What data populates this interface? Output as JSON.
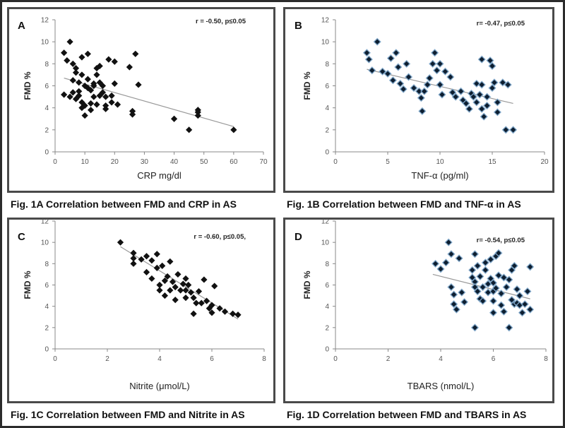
{
  "figure": {
    "captions": {
      "a": "Fig. 1A Correlation between FMD and CRP in AS",
      "b": "Fig. 1B Correlation between FMD and TNF-α in AS",
      "c": "Fig. 1C Correlation between FMD and Nitrite in AS",
      "d": "Fig. 1D Correlation between FMD and TBARS in AS"
    }
  },
  "chart_data": [
    {
      "type": "scatter",
      "panel_label": "A",
      "annotation": "r = -0.50, p≤0.05",
      "xlabel": "CRP mg/dl",
      "ylabel": "FMD %",
      "xlim": [
        0,
        70
      ],
      "ylim": [
        0,
        12
      ],
      "xticks": [
        "0",
        "10",
        "20",
        "30",
        "40",
        "50",
        "60",
        "70"
      ],
      "yticks": [
        "0",
        "2",
        "4",
        "6",
        "8",
        "10",
        "12"
      ],
      "marker_color": "#111111",
      "trendline": {
        "x": [
          3,
          60
        ],
        "y": [
          6.7,
          2.3
        ]
      },
      "points": [
        [
          3,
          9
        ],
        [
          3,
          5.2
        ],
        [
          4,
          8.3
        ],
        [
          5,
          10
        ],
        [
          5,
          5
        ],
        [
          6,
          8
        ],
        [
          6,
          6.5
        ],
        [
          6,
          5.4
        ],
        [
          7,
          7.6
        ],
        [
          7,
          7.2
        ],
        [
          7,
          4.8
        ],
        [
          8,
          6.3
        ],
        [
          8,
          5.5
        ],
        [
          8,
          5.1
        ],
        [
          9,
          8.6
        ],
        [
          9,
          7
        ],
        [
          9,
          4.5
        ],
        [
          9,
          4
        ],
        [
          10,
          3.3
        ],
        [
          10,
          6
        ],
        [
          10,
          4.2
        ],
        [
          11,
          8.9
        ],
        [
          11,
          6.6
        ],
        [
          11,
          5.8
        ],
        [
          12,
          5.6
        ],
        [
          12,
          3.8
        ],
        [
          12,
          4.4
        ],
        [
          13,
          5
        ],
        [
          13,
          6.2
        ],
        [
          13,
          6
        ],
        [
          14,
          7.6
        ],
        [
          14,
          7
        ],
        [
          14,
          4.3
        ],
        [
          15,
          7.8
        ],
        [
          15,
          6.3
        ],
        [
          15,
          5.1
        ],
        [
          16,
          5.4
        ],
        [
          16,
          6
        ],
        [
          17,
          4.2
        ],
        [
          17,
          5
        ],
        [
          17,
          3.9
        ],
        [
          18,
          8.4
        ],
        [
          19,
          5.1
        ],
        [
          19,
          4.5
        ],
        [
          20,
          8.2
        ],
        [
          20,
          6.2
        ],
        [
          21,
          4.3
        ],
        [
          25,
          7.7
        ],
        [
          26,
          3.4
        ],
        [
          26,
          3.7
        ],
        [
          27,
          8.9
        ],
        [
          28,
          6.1
        ],
        [
          40,
          3
        ],
        [
          45,
          2
        ],
        [
          48,
          3.3
        ],
        [
          48,
          3.6
        ],
        [
          48,
          3.8
        ],
        [
          60,
          2
        ]
      ]
    },
    {
      "type": "scatter",
      "panel_label": "B",
      "annotation": "r= -0.47, p≤0.05",
      "xlabel": "TNF-α (pg/ml)",
      "ylabel": "FMD %",
      "xlim": [
        0,
        20
      ],
      "ylim": [
        0,
        12
      ],
      "xticks": [
        "0",
        "5",
        "10",
        "15",
        "20"
      ],
      "yticks": [
        "0",
        "2",
        "4",
        "6",
        "8",
        "10",
        "12"
      ],
      "marker_color": "#0d1e30",
      "trendline": {
        "x": [
          3,
          17
        ],
        "y": [
          7.5,
          4.4
        ]
      },
      "points": [
        [
          3,
          9
        ],
        [
          3.2,
          8.4
        ],
        [
          3.5,
          7.4
        ],
        [
          4,
          10
        ],
        [
          4.5,
          7.3
        ],
        [
          5,
          7.1
        ],
        [
          5.3,
          8.5
        ],
        [
          5.5,
          6.5
        ],
        [
          5.8,
          9
        ],
        [
          6,
          7.7
        ],
        [
          6.2,
          6.2
        ],
        [
          6.5,
          5.7
        ],
        [
          6.8,
          8
        ],
        [
          7,
          6.8
        ],
        [
          7.5,
          5.8
        ],
        [
          8,
          5.5
        ],
        [
          8.2,
          4.9
        ],
        [
          8.3,
          3.7
        ],
        [
          8.5,
          5.5
        ],
        [
          8.8,
          6.1
        ],
        [
          9,
          6.7
        ],
        [
          9.3,
          8
        ],
        [
          9.5,
          9
        ],
        [
          9.7,
          7.4
        ],
        [
          10,
          8
        ],
        [
          10,
          6.1
        ],
        [
          10.2,
          5.2
        ],
        [
          10.5,
          7.3
        ],
        [
          11,
          6.8
        ],
        [
          11.2,
          5.4
        ],
        [
          11.5,
          5
        ],
        [
          12,
          5.5
        ],
        [
          12.2,
          4.7
        ],
        [
          12.5,
          4.4
        ],
        [
          12.8,
          3.9
        ],
        [
          13,
          5.3
        ],
        [
          13.2,
          5
        ],
        [
          13.5,
          6.2
        ],
        [
          13.5,
          4.5
        ],
        [
          13.8,
          5.2
        ],
        [
          14,
          8.4
        ],
        [
          14,
          6.1
        ],
        [
          14,
          3.9
        ],
        [
          14.2,
          3.2
        ],
        [
          14.5,
          5
        ],
        [
          14.5,
          4.2
        ],
        [
          14.8,
          8.3
        ],
        [
          15,
          7.8
        ],
        [
          15,
          5.8
        ],
        [
          15.2,
          6.3
        ],
        [
          15.5,
          4.5
        ],
        [
          15.5,
          3.6
        ],
        [
          16,
          6.3
        ],
        [
          16.3,
          2
        ],
        [
          16.5,
          6.1
        ],
        [
          17,
          2
        ]
      ]
    },
    {
      "type": "scatter",
      "panel_label": "C",
      "annotation": "r = -0.60, p≤0.05,",
      "xlabel": "Nitrite (μmol/L)",
      "ylabel": "FMD %",
      "xlim": [
        0,
        8
      ],
      "ylim": [
        0,
        12
      ],
      "xticks": [
        "0",
        "2",
        "4",
        "6",
        "8"
      ],
      "yticks": [
        "0",
        "2",
        "4",
        "6",
        "8",
        "10",
        "12"
      ],
      "marker_color": "#111111",
      "trendline": {
        "x": [
          2.5,
          7
        ],
        "y": [
          9.6,
          2.8
        ]
      },
      "points": [
        [
          2.5,
          10
        ],
        [
          3,
          9
        ],
        [
          3,
          8.5
        ],
        [
          3,
          8
        ],
        [
          3.3,
          8.4
        ],
        [
          3.5,
          8.7
        ],
        [
          3.5,
          7.2
        ],
        [
          3.7,
          8.3
        ],
        [
          3.7,
          6.6
        ],
        [
          3.9,
          8.9
        ],
        [
          3.9,
          7.6
        ],
        [
          4,
          6
        ],
        [
          4,
          5.5
        ],
        [
          4.1,
          7.8
        ],
        [
          4.2,
          6.4
        ],
        [
          4.2,
          5
        ],
        [
          4.3,
          6.8
        ],
        [
          4.4,
          8.2
        ],
        [
          4.4,
          5.5
        ],
        [
          4.5,
          6.3
        ],
        [
          4.6,
          5.8
        ],
        [
          4.6,
          4.6
        ],
        [
          4.7,
          7
        ],
        [
          4.8,
          5.5
        ],
        [
          4.9,
          6.1
        ],
        [
          5,
          6.6
        ],
        [
          5,
          5.5
        ],
        [
          5,
          4.8
        ],
        [
          5.1,
          6
        ],
        [
          5.2,
          5.3
        ],
        [
          5.3,
          4.8
        ],
        [
          5.3,
          3.3
        ],
        [
          5.4,
          4.3
        ],
        [
          5.5,
          5.4
        ],
        [
          5.6,
          4.3
        ],
        [
          5.7,
          6.5
        ],
        [
          5.8,
          4.5
        ],
        [
          5.9,
          3.8
        ],
        [
          6,
          4.1
        ],
        [
          6,
          3.4
        ],
        [
          6.1,
          5.9
        ],
        [
          6.3,
          3.8
        ],
        [
          6.5,
          3.5
        ],
        [
          6.8,
          3.3
        ],
        [
          7,
          3.2
        ]
      ]
    },
    {
      "type": "scatter",
      "panel_label": "D",
      "annotation": "r= -0.54, p≤0.05",
      "xlabel": "TBARS (nmol/L)",
      "ylabel": "FMD %",
      "xlim": [
        0,
        8
      ],
      "ylim": [
        0,
        12
      ],
      "xticks": [
        "0",
        "2",
        "4",
        "6",
        "8"
      ],
      "yticks": [
        "0",
        "2",
        "4",
        "6",
        "8",
        "10",
        "12"
      ],
      "marker_color": "#0d1e30",
      "trendline": {
        "x": [
          3.7,
          7.4
        ],
        "y": [
          7,
          4.7
        ]
      },
      "points": [
        [
          3.8,
          8
        ],
        [
          4,
          7.5
        ],
        [
          4.2,
          8.1
        ],
        [
          4.3,
          10
        ],
        [
          4.4,
          8.9
        ],
        [
          4.4,
          5.8
        ],
        [
          4.5,
          5.1
        ],
        [
          4.5,
          4.2
        ],
        [
          4.6,
          3.7
        ],
        [
          4.7,
          8.5
        ],
        [
          4.8,
          5.3
        ],
        [
          4.9,
          4.4
        ],
        [
          5.2,
          7.4
        ],
        [
          5.2,
          6.7
        ],
        [
          5.3,
          8.9
        ],
        [
          5.3,
          6.3
        ],
        [
          5.3,
          5.8
        ],
        [
          5.3,
          2
        ],
        [
          5.4,
          7.8
        ],
        [
          5.4,
          5.4
        ],
        [
          5.5,
          6.8
        ],
        [
          5.5,
          4.7
        ],
        [
          5.6,
          5.8
        ],
        [
          5.6,
          4.5
        ],
        [
          5.7,
          8.1
        ],
        [
          5.7,
          7.4
        ],
        [
          5.8,
          6.1
        ],
        [
          5.8,
          5.3
        ],
        [
          5.9,
          6.6
        ],
        [
          5.9,
          8.4
        ],
        [
          6,
          6.2
        ],
        [
          6,
          5.4
        ],
        [
          6,
          4.5
        ],
        [
          6,
          3.4
        ],
        [
          6.1,
          5.7
        ],
        [
          6.1,
          8.7
        ],
        [
          6.2,
          9
        ],
        [
          6.2,
          6.9
        ],
        [
          6.3,
          5.2
        ],
        [
          6.3,
          4.1
        ],
        [
          6.4,
          3.5
        ],
        [
          6.4,
          6.7
        ],
        [
          6.5,
          5.8
        ],
        [
          6.6,
          6.5
        ],
        [
          6.6,
          2
        ],
        [
          6.7,
          4.6
        ],
        [
          6.7,
          7.4
        ],
        [
          6.8,
          7.8
        ],
        [
          6.8,
          4.2
        ],
        [
          6.9,
          4.3
        ],
        [
          6.9,
          5.6
        ],
        [
          7,
          4.1
        ],
        [
          7,
          5
        ],
        [
          7.1,
          3.4
        ],
        [
          7.2,
          4.2
        ],
        [
          7.3,
          5.4
        ],
        [
          7.4,
          7.7
        ],
        [
          7.4,
          3.7
        ]
      ]
    }
  ]
}
